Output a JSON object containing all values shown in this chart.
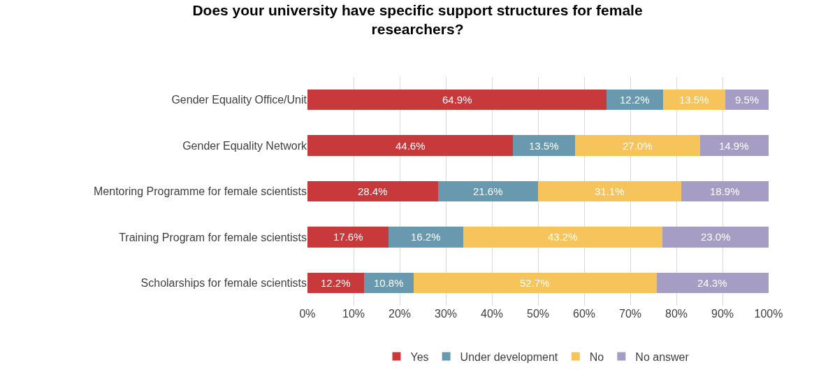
{
  "chart_data": {
    "type": "bar",
    "orientation": "horizontal",
    "stacked": true,
    "title": "Does your university have specific support structures for female researchers?",
    "categories": [
      "Gender Equality Office/Unit",
      "Gender Equality Network",
      "Mentoring Programme for female scientists",
      "Training Program for female scientists",
      "Scholarships for female scientists"
    ],
    "series": [
      {
        "name": "Yes",
        "color": "#c8393b",
        "values": [
          64.9,
          44.6,
          28.4,
          17.6,
          12.2
        ],
        "value_labels": [
          "64.9%",
          "44.6%",
          "28.4%",
          "17.6%",
          "12.2%"
        ]
      },
      {
        "name": "Under development",
        "color": "#6899ae",
        "values": [
          12.2,
          13.5,
          21.6,
          16.2,
          10.8
        ],
        "value_labels": [
          "12.2%",
          "13.5%",
          "21.6%",
          "16.2%",
          "10.8%"
        ]
      },
      {
        "name": "No",
        "color": "#f7c45c",
        "values": [
          13.5,
          27.0,
          31.1,
          43.2,
          52.7
        ],
        "value_labels": [
          "13.5%",
          "27.0%",
          "31.1%",
          "43.2%",
          "52.7%"
        ]
      },
      {
        "name": "No answer",
        "color": "#a59dc4",
        "values": [
          9.5,
          14.9,
          18.9,
          23.0,
          24.3
        ],
        "value_labels": [
          "9.5%",
          "14.9%",
          "18.9%",
          "23.0%",
          "24.3%"
        ]
      }
    ],
    "xlim": [
      0,
      100
    ],
    "xticks": [
      {
        "value": 0,
        "label": "0%"
      },
      {
        "value": 10,
        "label": "10%"
      },
      {
        "value": 20,
        "label": "20%"
      },
      {
        "value": 30,
        "label": "30%"
      },
      {
        "value": 40,
        "label": "40%"
      },
      {
        "value": 50,
        "label": "50%"
      },
      {
        "value": 60,
        "label": "60%"
      },
      {
        "value": 70,
        "label": "70%"
      },
      {
        "value": 80,
        "label": "80%"
      },
      {
        "value": 90,
        "label": "90%"
      },
      {
        "value": 100,
        "label": "100%"
      }
    ],
    "grid": "x",
    "legend": "bottom"
  }
}
